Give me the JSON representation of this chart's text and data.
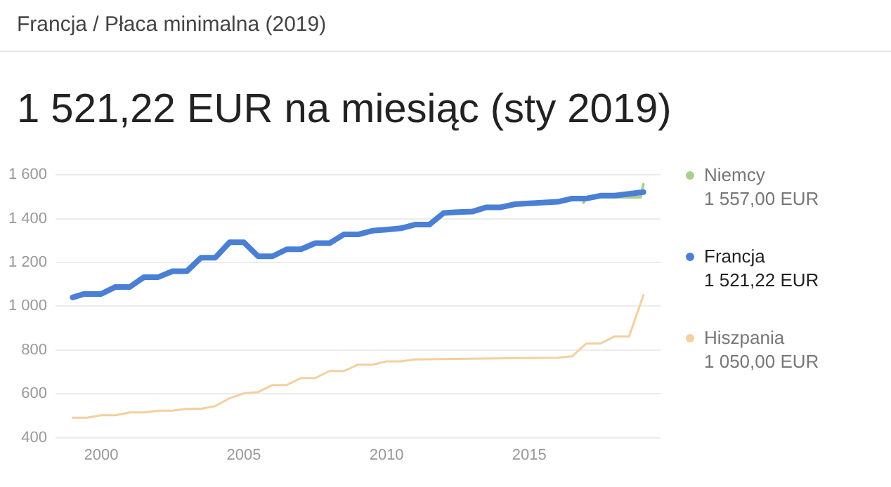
{
  "chart_data": {
    "type": "line",
    "subtitle": "Francja / Płaca minimalna (2019)",
    "title": "1 521,22 EUR na miesiąc (sty 2019)",
    "xlim": [
      1998.4,
      2019.6
    ],
    "xticks": [
      2000,
      2005,
      2010,
      2015
    ],
    "ylim": [
      400,
      1600
    ],
    "yticks": [
      {
        "value": 400,
        "label": "400"
      },
      {
        "value": 600,
        "label": "600"
      },
      {
        "value": 800,
        "label": "800"
      },
      {
        "value": 1000,
        "label": "1 000"
      },
      {
        "value": 1200,
        "label": "1 200"
      },
      {
        "value": 1400,
        "label": "1 400"
      },
      {
        "value": 1600,
        "label": "1 600"
      }
    ],
    "grid": "y",
    "legend": "right",
    "marker": "none",
    "line_style": "solid",
    "annotations": [
      "1 557,00 EUR",
      "1 521,22 EUR",
      "1 050,00 EUR"
    ],
    "series": [
      {
        "name": "Niemcy",
        "color": "#a8d08d",
        "x": [
          2016.9,
          2017,
          2018.9,
          2019
        ],
        "values": [
          1473,
          1498,
          1498,
          1557
        ]
      },
      {
        "name": "Francja",
        "color": "#4a7fd4",
        "x": [
          1999,
          1999.4,
          2000,
          2000.5,
          2001,
          2001.5,
          2002,
          2002.5,
          2003,
          2003.5,
          2004,
          2004.5,
          2005,
          2005.5,
          2006,
          2006.5,
          2007,
          2007.5,
          2008,
          2008.5,
          2009,
          2009.5,
          2010,
          2010.5,
          2011,
          2011.5,
          2012,
          2012.5,
          2013,
          2013.5,
          2014,
          2014.5,
          2015,
          2016,
          2016.5,
          2017,
          2017.5,
          2018,
          2019
        ],
        "values": [
          1040,
          1056,
          1056,
          1088,
          1088,
          1133,
          1133,
          1160,
          1160,
          1222,
          1222,
          1292,
          1292,
          1228,
          1228,
          1260,
          1260,
          1288,
          1288,
          1328,
          1328,
          1345,
          1350,
          1356,
          1373,
          1373,
          1426,
          1430,
          1432,
          1452,
          1452,
          1466,
          1470,
          1477,
          1492,
          1492,
          1505,
          1505,
          1521.22
        ]
      },
      {
        "name": "Hiszpania",
        "color": "#f5cf9f",
        "x": [
          1999,
          1999.5,
          2000,
          2000.5,
          2001,
          2001.5,
          2002,
          2002.5,
          2003,
          2003.5,
          2004,
          2004.5,
          2005,
          2005.5,
          2006,
          2006.5,
          2007,
          2007.5,
          2008,
          2008.5,
          2009,
          2009.5,
          2010,
          2010.5,
          2011,
          2016,
          2016.5,
          2017,
          2017.5,
          2018,
          2018.5,
          2019
        ],
        "values": [
          491,
          491,
          502,
          502,
          515,
          515,
          523,
          523,
          532,
          532,
          544,
          580,
          602,
          608,
          640,
          640,
          672,
          672,
          704,
          704,
          733,
          733,
          748,
          748,
          757,
          765,
          771,
          830,
          830,
          862,
          862,
          1050
        ]
      }
    ]
  }
}
